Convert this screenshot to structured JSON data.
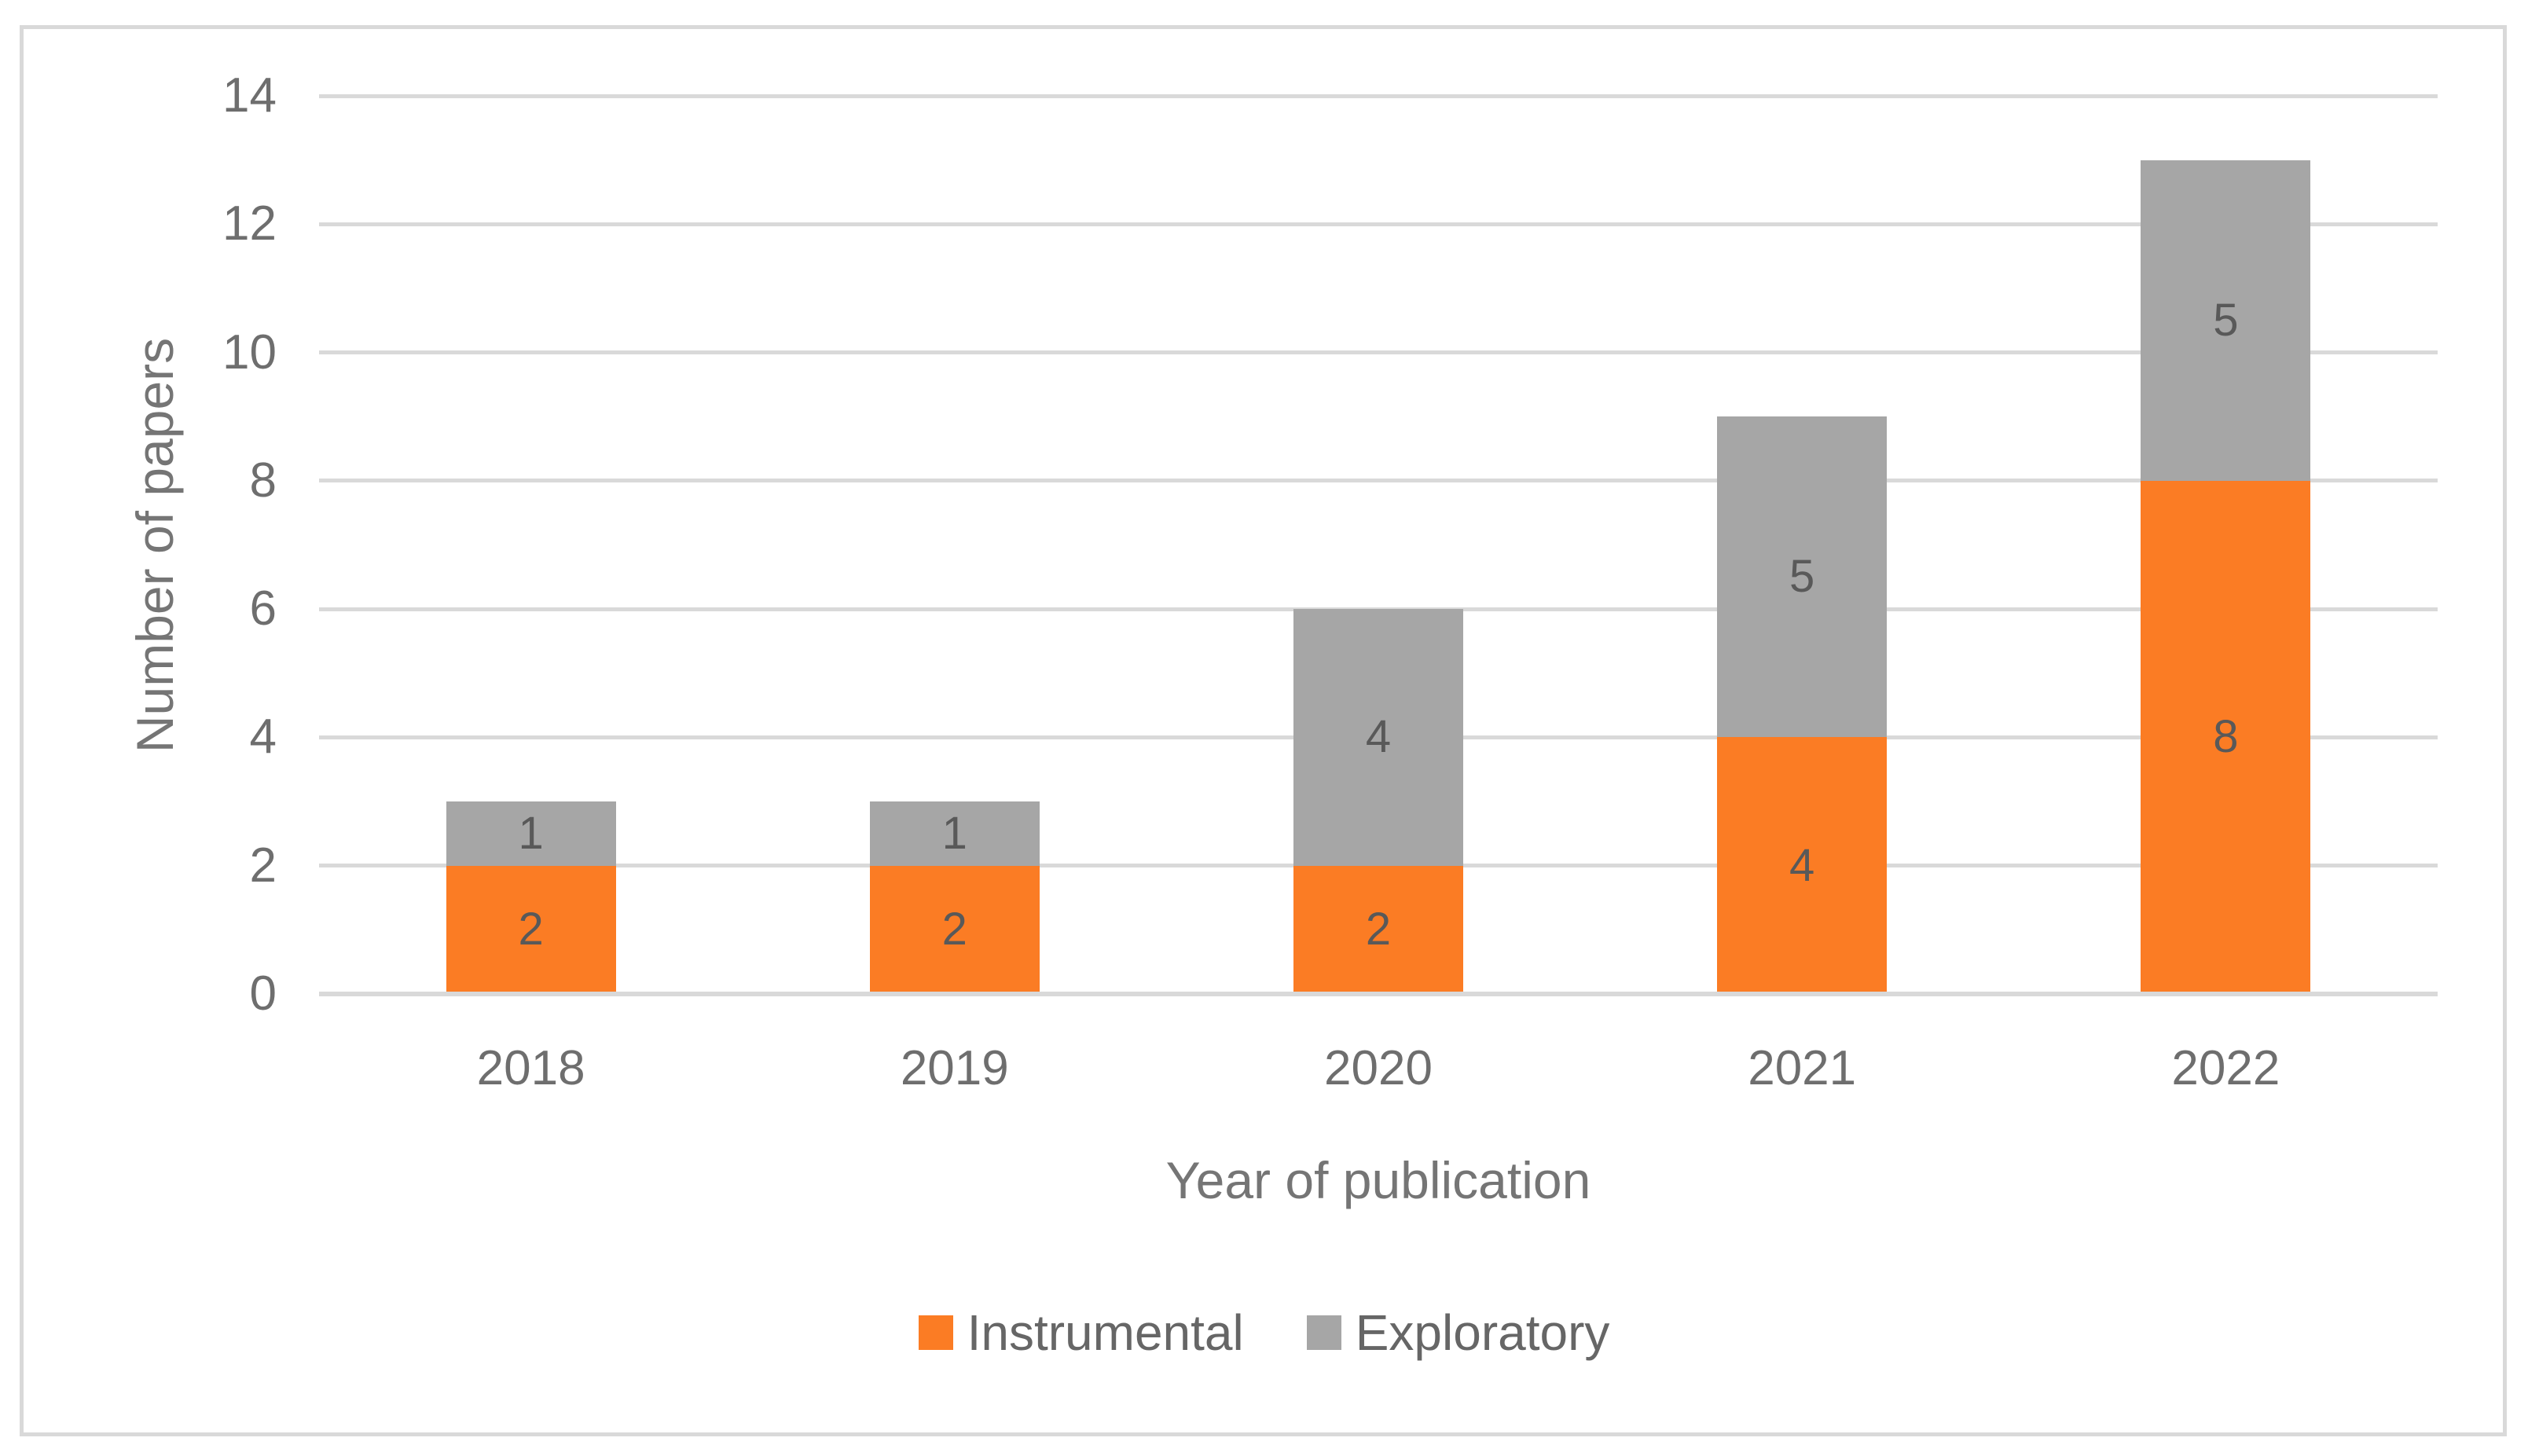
{
  "chart_data": {
    "type": "bar",
    "stacked": true,
    "categories": [
      "2018",
      "2019",
      "2020",
      "2021",
      "2022"
    ],
    "series": [
      {
        "name": "Instrumental",
        "color": "#FB7C24",
        "values": [
          2,
          2,
          2,
          4,
          8
        ]
      },
      {
        "name": "Exploratory",
        "color": "#A6A6A6",
        "values": [
          1,
          1,
          4,
          5,
          5
        ]
      }
    ],
    "totals": [
      3,
      3,
      6,
      9,
      13
    ],
    "title": "",
    "xlabel": "Year of publication",
    "ylabel": "Number of papers",
    "ylim": [
      0,
      14
    ],
    "yticks": [
      0,
      2,
      4,
      6,
      8,
      10,
      12,
      14
    ],
    "grid": "horizontal",
    "legend_position": "bottom-center",
    "data_labels": true
  },
  "colors": {
    "background": "#FFFFFF",
    "frame_border": "#D9D9D9",
    "gridline": "#D9D9D9",
    "axis_line": "#D9D9D9",
    "tick_text": "#6E6E6E",
    "axis_title_text": "#757575",
    "data_label_text": "#595959",
    "legend_text": "#666666"
  }
}
